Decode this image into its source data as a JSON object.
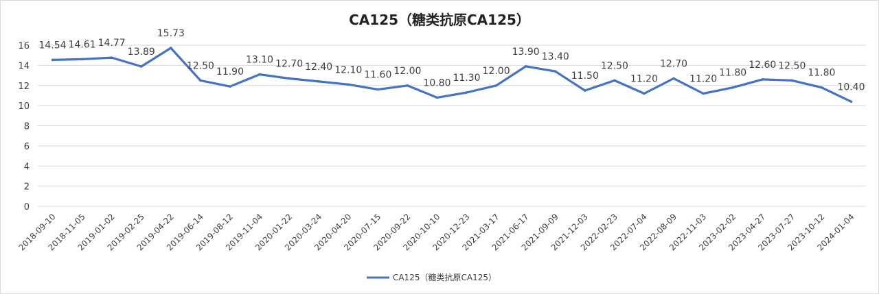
{
  "chart_data": {
    "type": "line",
    "title": "CA125（糖类抗原CA125）",
    "x": [
      "2018-09-10",
      "2018-11-05",
      "2019-01-02",
      "2019-02-25",
      "2019-04-22",
      "2019-06-14",
      "2019-08-12",
      "2019-11-04",
      "2020-01-22",
      "2020-03-24",
      "2020-04-20",
      "2020-07-15",
      "2020-09-22",
      "2020-10-10",
      "2020-12-23",
      "2021-03-17",
      "2021-06-17",
      "2021-09-09",
      "2021-12-03",
      "2022-02-23",
      "2022-07-04",
      "2022-08-09",
      "2022-11-03",
      "2023-02-02",
      "2023-04-27",
      "2023-07-27",
      "2023-10-12",
      "2024-01-04"
    ],
    "series": [
      {
        "name": "CA125（糖类抗原CA125）",
        "values": [
          14.54,
          14.61,
          14.77,
          13.89,
          15.73,
          12.5,
          11.9,
          13.1,
          12.7,
          12.4,
          12.1,
          11.6,
          12.0,
          10.8,
          11.3,
          12.0,
          13.9,
          13.4,
          11.5,
          12.5,
          11.2,
          12.7,
          11.2,
          11.8,
          12.6,
          12.5,
          11.8,
          10.4
        ],
        "labels": [
          "14.54",
          "14.61",
          "14.77",
          "13.89",
          "15.73",
          "12.50",
          "11.90",
          "13.10",
          "12.70",
          "12.40",
          "12.10",
          "11.60",
          "12.00",
          "10.80",
          "11.30",
          "12.00",
          "13.90",
          "13.40",
          "11.50",
          "12.50",
          "11.20",
          "12.70",
          "11.20",
          "11.80",
          "12.60",
          "12.50",
          "11.80",
          "10.40"
        ],
        "color": "#4472c4"
      }
    ],
    "yticks": [
      "0",
      "2",
      "4",
      "6",
      "8",
      "10",
      "12",
      "14",
      "16"
    ],
    "ylim": [
      0,
      16
    ],
    "grid": true,
    "legend_position": "bottom"
  }
}
